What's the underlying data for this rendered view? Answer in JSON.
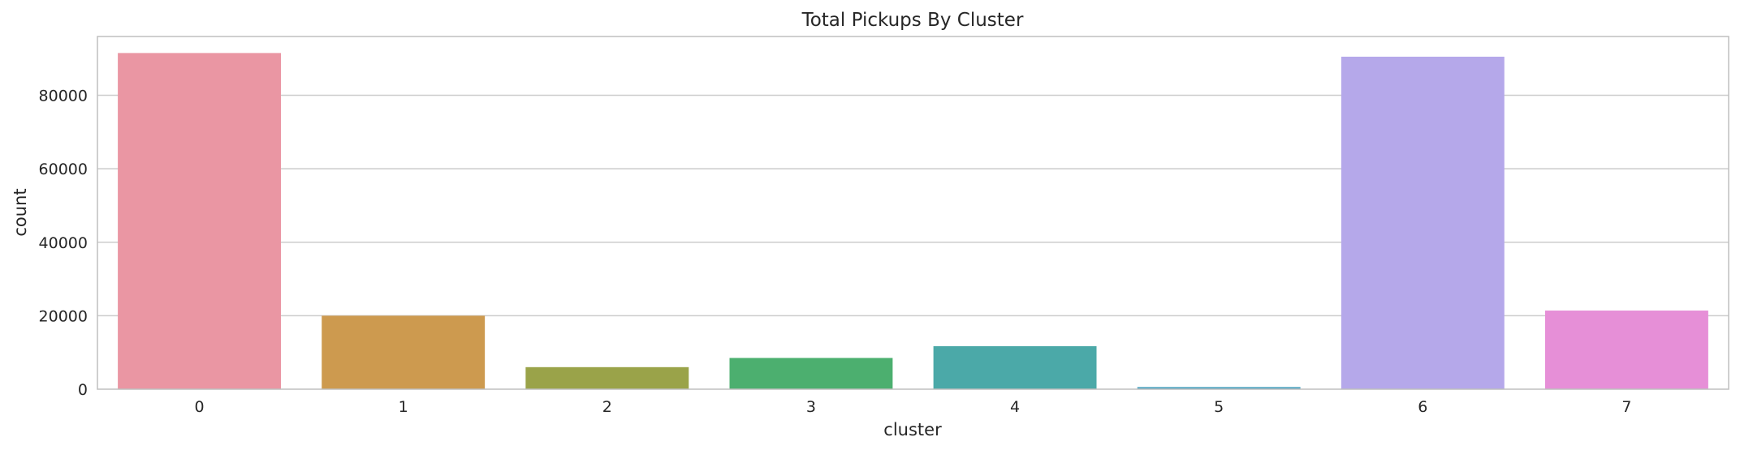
{
  "chart_data": {
    "type": "bar",
    "title": "Total Pickups By Cluster",
    "xlabel": "cluster",
    "ylabel": "count",
    "categories": [
      "0",
      "1",
      "2",
      "3",
      "4",
      "5",
      "6",
      "7"
    ],
    "values": [
      91500,
      20000,
      6000,
      8500,
      11700,
      600,
      90500,
      21400
    ],
    "ylim": [
      0,
      96000
    ],
    "yticks": [
      0,
      20000,
      40000,
      60000,
      80000
    ],
    "ytick_labels": [
      "0",
      "20000",
      "40000",
      "60000",
      "80000"
    ],
    "grid": "horizontal",
    "legend": "none",
    "colors": [
      "#ea96a3",
      "#cd9a4f",
      "#9aa349",
      "#4caf6f",
      "#4ba9a8",
      "#56a6c2",
      "#b5a8ea",
      "#e68fd7"
    ],
    "grid_color": "#cccccc",
    "frame_color": "#bfbfbf"
  }
}
